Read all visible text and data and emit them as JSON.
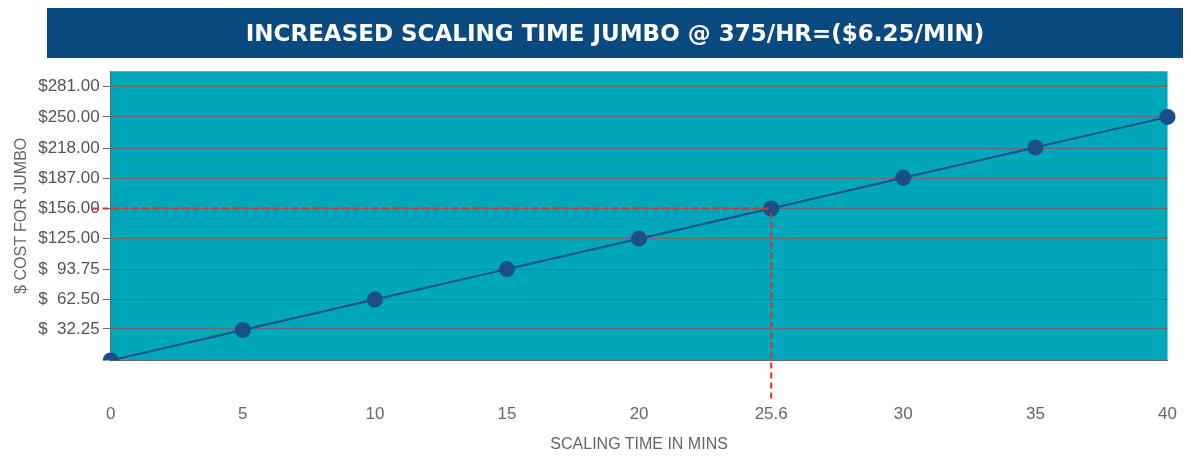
{
  "chart_data": {
    "type": "line",
    "title": "INCREASED SCALING TIME JUMBO @ 375/HR=($6.25/MIN)",
    "xlabel": "SCALING TIME IN MINS",
    "ylabel": "$ COST FOR JUMBO",
    "categories": [
      "0",
      "5",
      "10",
      "15",
      "20",
      "25.6",
      "30",
      "35",
      "40"
    ],
    "series": [
      {
        "color": "#1a4f8a",
        "values": [
          0,
          31.25,
          62.5,
          93.75,
          125,
          156,
          187.5,
          218.75,
          250
        ]
      }
    ],
    "ylim": [
      0,
      297
    ],
    "yticks": [
      {
        "value": 32.25,
        "label": "$  32.25"
      },
      {
        "value": 62.5,
        "label": "$  62.50"
      },
      {
        "value": 93.75,
        "label": "$  93.75"
      },
      {
        "value": 125,
        "label": "$125.00"
      },
      {
        "value": 156,
        "label": "$156.00"
      },
      {
        "value": 187,
        "label": "$187.00"
      },
      {
        "value": 218,
        "label": "$218.00"
      },
      {
        "value": 250,
        "label": "$250.00"
      },
      {
        "value": 281,
        "label": "$281.00"
      }
    ],
    "ref_lines": [
      {
        "axis": "y",
        "value": 156,
        "color": "#e03030",
        "line_style": "dashed"
      },
      {
        "axis": "x",
        "value": "25.6",
        "color": "#e03030",
        "line_style": "dashed"
      }
    ],
    "grid": "y",
    "legend": false,
    "marker": "circle",
    "line_style": "solid"
  }
}
